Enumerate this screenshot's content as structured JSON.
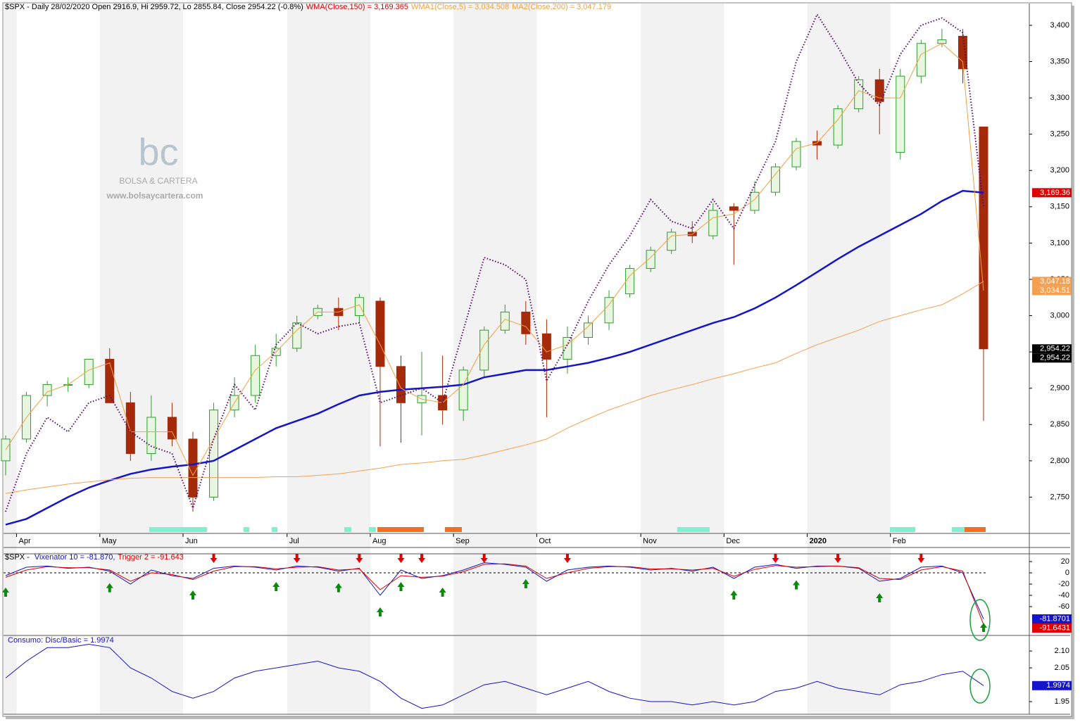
{
  "chart_data": [
    {
      "type": "candlestick",
      "title": "$SPX - Daily 28/02/2020 Open 2916.9, Hi 2959.72, Lo 2855.84, Close 2954.22 (-0.8%)",
      "categories": [
        null,
        "Apr",
        null,
        null,
        null,
        "May",
        null,
        null,
        null,
        "Jun",
        null,
        null,
        null,
        null,
        "Jul",
        null,
        null,
        null,
        "Aug",
        null,
        null,
        null,
        "Sep",
        null,
        null,
        null,
        "Oct",
        null,
        null,
        null,
        null,
        "Nov",
        null,
        null,
        null,
        "Dec",
        null,
        null,
        null,
        "2020",
        null,
        null,
        null,
        "Feb",
        null,
        null,
        null,
        null
      ],
      "open": [
        2800,
        2830,
        2890,
        2905,
        2905,
        2940,
        2880,
        2810,
        2860,
        2830,
        2750,
        2870,
        2890,
        2945,
        2955,
        3000,
        3010,
        3000,
        3020,
        2930,
        2880,
        2890,
        2870,
        2925,
        2980,
        3005,
        2975,
        2940,
        2970,
        2990,
        3030,
        3065,
        3090,
        3115,
        3110,
        3150,
        3145,
        3170,
        3205,
        3240,
        3235,
        3285,
        3325,
        3225,
        3330,
        3375,
        3385,
        3260
      ],
      "high": [
        2835,
        2895,
        2910,
        2915,
        2940,
        2955,
        2895,
        2890,
        2880,
        2840,
        2880,
        2915,
        2960,
        2975,
        3000,
        3015,
        3025,
        3030,
        3025,
        2945,
        2950,
        2945,
        2930,
        2985,
        3015,
        3020,
        2995,
        2985,
        3000,
        3035,
        3070,
        3095,
        3120,
        3130,
        3155,
        3155,
        3185,
        3210,
        3245,
        3255,
        3290,
        3330,
        3340,
        3340,
        3380,
        3395,
        3395,
        3260
      ],
      "low": [
        2780,
        2825,
        2875,
        2895,
        2900,
        2880,
        2800,
        2800,
        2820,
        2730,
        2745,
        2860,
        2880,
        2930,
        2950,
        2995,
        2980,
        2990,
        2820,
        2825,
        2835,
        2850,
        2855,
        2915,
        2975,
        2960,
        2860,
        2920,
        2960,
        2980,
        3025,
        3060,
        3085,
        3100,
        3105,
        3070,
        3140,
        3165,
        3200,
        3215,
        3230,
        3280,
        3250,
        3215,
        3320,
        3370,
        3320,
        2855
      ],
      "close": [
        2830,
        2890,
        2905,
        2905,
        2940,
        2880,
        2810,
        2860,
        2830,
        2750,
        2870,
        2890,
        2945,
        2955,
        2990,
        3010,
        3000,
        3025,
        2930,
        2880,
        2890,
        2870,
        2925,
        2980,
        3005,
        2975,
        2940,
        2970,
        2990,
        3025,
        3065,
        3090,
        3115,
        3110,
        3145,
        3145,
        3170,
        3205,
        3240,
        3235,
        3285,
        3325,
        3295,
        3330,
        3375,
        3380,
        3340,
        2954.22
      ],
      "up_color": "#2e9e2e",
      "down_color": "#a52a0a",
      "series": [
        {
          "name": "WMA(Close,150) = 3,169.365",
          "color": "#1414c8",
          "label_color": "#e00000",
          "width": 2.5,
          "values": [
            2712,
            2720,
            2735,
            2750,
            2763,
            2773,
            2782,
            2788,
            2792,
            2795,
            2800,
            2815,
            2830,
            2845,
            2855,
            2865,
            2878,
            2890,
            2895,
            2898,
            2900,
            2902,
            2905,
            2915,
            2920,
            2925,
            2925,
            2930,
            2935,
            2942,
            2950,
            2960,
            2970,
            2980,
            2990,
            2998,
            3010,
            3025,
            3042,
            3060,
            3078,
            3095,
            3110,
            3125,
            3140,
            3158,
            3172,
            3169.365
          ]
        },
        {
          "name": "WMA1(Close,5) = 3,034.508",
          "color": "#f0a040",
          "label_color": "#f0a040",
          "width": 1,
          "values": [
            2815,
            2860,
            2895,
            2905,
            2925,
            2935,
            2840,
            2840,
            2840,
            2780,
            2830,
            2880,
            2925,
            2950,
            2980,
            3005,
            3005,
            3015,
            2960,
            2900,
            2885,
            2880,
            2905,
            2960,
            2995,
            2985,
            2950,
            2960,
            2985,
            3015,
            3055,
            3080,
            3110,
            3112,
            3135,
            3140,
            3160,
            3195,
            3230,
            3238,
            3270,
            3310,
            3300,
            3300,
            3360,
            3375,
            3350,
            3034.508
          ]
        },
        {
          "name": "MA2(Close,200) = 3,047.179",
          "color": "#f5a050",
          "label_color": "#f0a040",
          "width": 1,
          "values": [
            2755,
            2760,
            2764,
            2768,
            2771,
            2774,
            2776,
            2777,
            2777,
            2777,
            2777,
            2777,
            2777,
            2778,
            2778,
            2780,
            2782,
            2786,
            2790,
            2795,
            2797,
            2800,
            2802,
            2808,
            2815,
            2822,
            2830,
            2845,
            2858,
            2870,
            2880,
            2890,
            2898,
            2905,
            2913,
            2920,
            2928,
            2935,
            2948,
            2960,
            2970,
            2980,
            2992,
            3000,
            3008,
            3015,
            3030,
            3047.179
          ]
        },
        {
          "color": "#5a0a6e",
          "width": 2,
          "style": "dotted",
          "values": [
            2730,
            2810,
            2860,
            2840,
            2880,
            2890,
            2840,
            2820,
            2810,
            2735,
            2830,
            2905,
            2870,
            2960,
            2990,
            2975,
            2985,
            2990,
            2880,
            2890,
            2900,
            2880,
            2980,
            3080,
            3070,
            3050,
            2910,
            2960,
            3020,
            3070,
            3110,
            3160,
            3130,
            3120,
            3160,
            3120,
            3180,
            3240,
            3350,
            3415,
            3370,
            3320,
            3290,
            3360,
            3400,
            3410,
            3390,
            3150
          ]
        }
      ],
      "ylim": [
        2700,
        3430
      ],
      "yticks": [
        {
          "value": 2750,
          "label": "2,750"
        },
        {
          "value": 2800,
          "label": "2,800"
        },
        {
          "value": 2850,
          "label": "2,850"
        },
        {
          "value": 2900,
          "label": "2,900"
        },
        {
          "value": 2950,
          "label": "2,950"
        },
        {
          "value": 3000,
          "label": "3,000"
        },
        {
          "value": 3050,
          "label": "3,050"
        },
        {
          "value": 3100,
          "label": "3,100"
        },
        {
          "value": 3150,
          "label": "3,150"
        },
        {
          "value": 3200,
          "label": "3,200"
        },
        {
          "value": 3250,
          "label": "3,250"
        },
        {
          "value": 3300,
          "label": "3,300"
        },
        {
          "value": 3350,
          "label": "3,350"
        },
        {
          "value": 3400,
          "label": "3,400"
        }
      ],
      "last_labels": [
        {
          "value": 3169.36,
          "label": "3,169.36",
          "color": "#e00000"
        },
        {
          "value": 3047.18,
          "label": "3,047.18",
          "color": "#f5a050"
        },
        {
          "value": 3034.51,
          "label": "3,034.51",
          "color": "#f5a050"
        },
        {
          "value": 2954.22,
          "label": "2,954.22",
          "color": "#000000"
        },
        {
          "value": 2954.22,
          "label": "2,954.22",
          "color": "#000000"
        }
      ],
      "watermark": {
        "logo": "bc",
        "name": "BOLSA & CARTERA",
        "url": "www.bolsaycartera.com"
      }
    },
    {
      "type": "line",
      "title": "$SPX - ",
      "series": [
        {
          "name": "Vixenator 10 = -81.870,",
          "color": "#1414c8",
          "label_color": "#1414c8",
          "width": 1,
          "values": [
            -5,
            10,
            12,
            8,
            10,
            3,
            -20,
            5,
            -5,
            -10,
            8,
            12,
            10,
            5,
            12,
            10,
            3,
            8,
            -40,
            5,
            -10,
            -5,
            5,
            18,
            15,
            10,
            -15,
            5,
            10,
            12,
            10,
            5,
            8,
            3,
            10,
            -10,
            10,
            15,
            8,
            12,
            12,
            8,
            -15,
            -10,
            10,
            12,
            0,
            -81.87
          ]
        },
        {
          "name": "Trigger 2 = -91.643",
          "color": "#e00000",
          "label_color": "#e00000",
          "width": 1,
          "values": [
            -8,
            5,
            11,
            9,
            9,
            5,
            -15,
            0,
            -3,
            -12,
            3,
            11,
            11,
            7,
            10,
            11,
            5,
            7,
            -30,
            -5,
            -8,
            -6,
            2,
            15,
            16,
            12,
            -10,
            0,
            8,
            11,
            11,
            7,
            7,
            5,
            8,
            -6,
            6,
            13,
            10,
            11,
            12,
            9,
            -10,
            -12,
            5,
            11,
            3,
            -91.643
          ]
        }
      ],
      "hline": 0,
      "signals_up": [
        0,
        5,
        9,
        13,
        16,
        18,
        19,
        21,
        25,
        35,
        38,
        42,
        47
      ],
      "signals_down": [
        10,
        14,
        17,
        19,
        20,
        23,
        27,
        37,
        40,
        44
      ],
      "ylim": [
        -110,
        33.75
      ],
      "yticks": [
        20,
        0,
        -20,
        -40,
        -60
      ],
      "last_labels": [
        {
          "value": -81.8701,
          "label": "-81.8701",
          "color": "#1414c8"
        },
        {
          "value": -91.6431,
          "label": "-91.6431",
          "color": "#e00000"
        }
      ]
    },
    {
      "type": "line",
      "series": [
        {
          "name": "Consumo: Disc/Basic = 1.9974",
          "color": "#1414c8",
          "label_color": "#1414c8",
          "width": 1,
          "values": [
            2.02,
            2.07,
            2.11,
            2.11,
            2.12,
            2.11,
            2.05,
            2.02,
            1.98,
            1.96,
            1.98,
            2.02,
            2.04,
            2.05,
            2.06,
            2.07,
            2.05,
            2.04,
            2.01,
            1.96,
            1.93,
            1.94,
            1.97,
            2.0,
            2.01,
            1.99,
            1.97,
            1.99,
            2.01,
            1.98,
            1.96,
            1.95,
            1.95,
            1.94,
            1.95,
            1.94,
            1.95,
            1.98,
            1.99,
            2.01,
            1.99,
            1.98,
            1.97,
            2.0,
            2.01,
            2.03,
            2.04,
            1.9974
          ]
        }
      ],
      "ylim": [
        1.9125,
        2.142
      ],
      "yticks": [
        {
          "value": 2.1,
          "label": "2.10"
        },
        {
          "value": 2.05,
          "label": "2.05"
        },
        {
          "value": 1.95,
          "label": "1.95"
        }
      ],
      "last_labels": [
        {
          "value": 1.9974,
          "label": "1.9974",
          "color": "#1414c8"
        }
      ]
    }
  ]
}
